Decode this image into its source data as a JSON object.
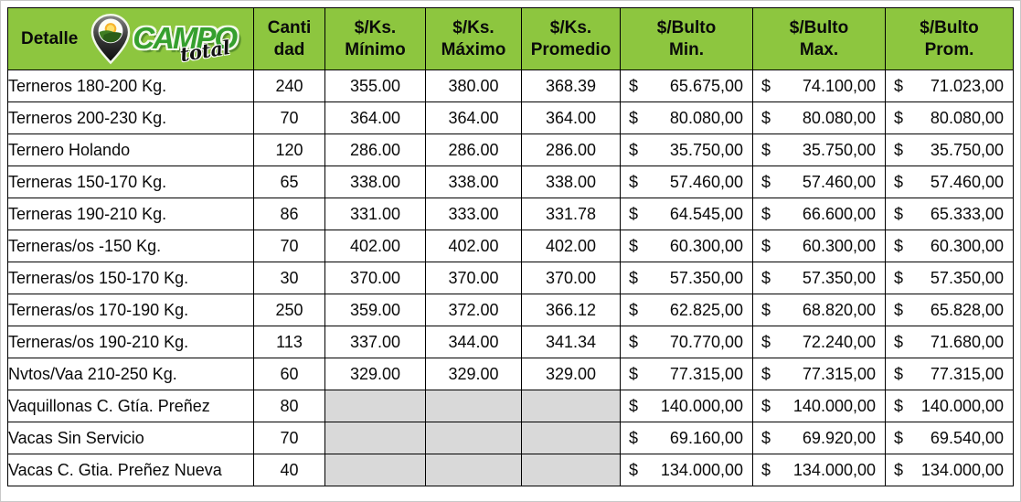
{
  "logo": {
    "campo": "CAMPO",
    "total": "total"
  },
  "table": {
    "currency_symbol": "$",
    "detalle_header": "Detalle",
    "columns": [
      {
        "line1": "Canti",
        "line2": "dad"
      },
      {
        "line1": "$/Ks.",
        "line2": "Mínimo"
      },
      {
        "line1": "$/Ks.",
        "line2": "Máximo"
      },
      {
        "line1": "$/Ks.",
        "line2": "Promedio"
      },
      {
        "line1": "$/Bulto",
        "line2": "Min."
      },
      {
        "line1": "$/Bulto",
        "line2": "Max."
      },
      {
        "line1": "$/Bulto",
        "line2": "Prom."
      }
    ],
    "rows": [
      {
        "detalle": "Terneros 180-200 Kg.",
        "cantidad": "240",
        "ks_min": "355.00",
        "ks_max": "380.00",
        "ks_prom": "368.39",
        "bulto_min": "65.675,00",
        "bulto_max": "74.100,00",
        "bulto_prom": "71.023,00"
      },
      {
        "detalle": "Terneros 200-230 Kg.",
        "cantidad": "70",
        "ks_min": "364.00",
        "ks_max": "364.00",
        "ks_prom": "364.00",
        "bulto_min": "80.080,00",
        "bulto_max": "80.080,00",
        "bulto_prom": "80.080,00"
      },
      {
        "detalle": "Ternero Holando",
        "cantidad": "120",
        "ks_min": "286.00",
        "ks_max": "286.00",
        "ks_prom": "286.00",
        "bulto_min": "35.750,00",
        "bulto_max": "35.750,00",
        "bulto_prom": "35.750,00"
      },
      {
        "detalle": "Terneras 150-170 Kg.",
        "cantidad": "65",
        "ks_min": "338.00",
        "ks_max": "338.00",
        "ks_prom": "338.00",
        "bulto_min": "57.460,00",
        "bulto_max": "57.460,00",
        "bulto_prom": "57.460,00"
      },
      {
        "detalle": "Terneras 190-210 Kg.",
        "cantidad": "86",
        "ks_min": "331.00",
        "ks_max": "333.00",
        "ks_prom": "331.78",
        "bulto_min": "64.545,00",
        "bulto_max": "66.600,00",
        "bulto_prom": "65.333,00"
      },
      {
        "detalle": "Terneras/os -150 Kg.",
        "cantidad": "70",
        "ks_min": "402.00",
        "ks_max": "402.00",
        "ks_prom": "402.00",
        "bulto_min": "60.300,00",
        "bulto_max": "60.300,00",
        "bulto_prom": "60.300,00"
      },
      {
        "detalle": "Terneras/os 150-170 Kg.",
        "cantidad": "30",
        "ks_min": "370.00",
        "ks_max": "370.00",
        "ks_prom": "370.00",
        "bulto_min": "57.350,00",
        "bulto_max": "57.350,00",
        "bulto_prom": "57.350,00"
      },
      {
        "detalle": "Terneras/os 170-190 Kg.",
        "cantidad": "250",
        "ks_min": "359.00",
        "ks_max": "372.00",
        "ks_prom": "366.12",
        "bulto_min": "62.825,00",
        "bulto_max": "68.820,00",
        "bulto_prom": "65.828,00"
      },
      {
        "detalle": "Terneras/os 190-210 Kg.",
        "cantidad": "113",
        "ks_min": "337.00",
        "ks_max": "344.00",
        "ks_prom": "341.34",
        "bulto_min": "70.770,00",
        "bulto_max": "72.240,00",
        "bulto_prom": "71.680,00"
      },
      {
        "detalle": "Nvtos/Vaa 210-250 Kg.",
        "cantidad": "60",
        "ks_min": "329.00",
        "ks_max": "329.00",
        "ks_prom": "329.00",
        "bulto_min": "77.315,00",
        "bulto_max": "77.315,00",
        "bulto_prom": "77.315,00"
      },
      {
        "detalle": "Vaquillonas C. Gtía. Preñez",
        "cantidad": "80",
        "ks_min": "",
        "ks_max": "",
        "ks_prom": "",
        "bulto_min": "140.000,00",
        "bulto_max": "140.000,00",
        "bulto_prom": "140.000,00"
      },
      {
        "detalle": "Vacas Sin Servicio",
        "cantidad": "70",
        "ks_min": "",
        "ks_max": "",
        "ks_prom": "",
        "bulto_min": "69.160,00",
        "bulto_max": "69.920,00",
        "bulto_prom": "69.540,00"
      },
      {
        "detalle": "Vacas C. Gtia. Preñez Nueva",
        "cantidad": "40",
        "ks_min": "",
        "ks_max": "",
        "ks_prom": "",
        "bulto_min": "134.000,00",
        "bulto_max": "134.000,00",
        "bulto_prom": "134.000,00"
      }
    ],
    "colors": {
      "header_green": "#8dc63f",
      "disabled_cell_gray": "#d9d9d9",
      "border_black": "#000000"
    }
  }
}
